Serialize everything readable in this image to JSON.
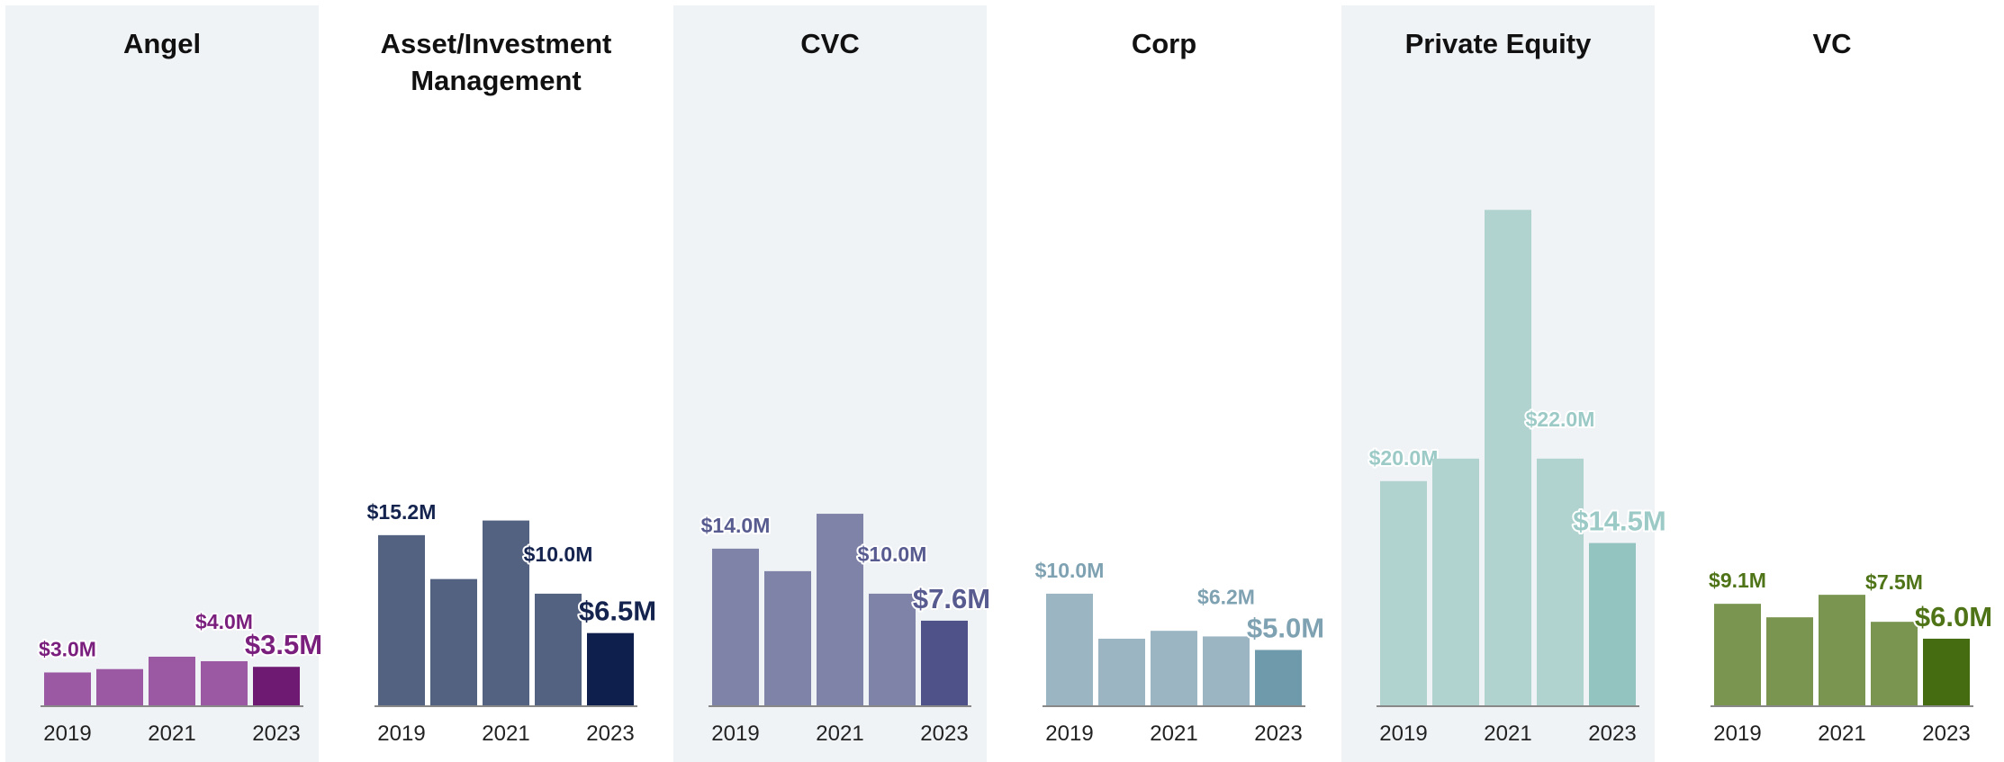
{
  "chart_data": [
    {
      "type": "bar",
      "title": "Angel",
      "categories": [
        "2019",
        null,
        "2021",
        null,
        "2023"
      ],
      "values": [
        3.0,
        3.3,
        4.4,
        4.0,
        3.5
      ],
      "value_labels": [
        "$3.0M",
        null,
        null,
        "$4.0M",
        "$3.5M"
      ],
      "colors": [
        "#9b59a3",
        "#9b59a3",
        "#9b59a3",
        "#9b59a3",
        "#6e1a72"
      ],
      "label_color": "#7a1f7d",
      "background": "#f0f3f6",
      "ylim": [
        0,
        47
      ]
    },
    {
      "type": "bar",
      "title": "Asset/Investment Management",
      "categories": [
        "2019",
        null,
        "2021",
        null,
        "2023"
      ],
      "values": [
        15.2,
        11.3,
        16.5,
        10.0,
        6.5
      ],
      "value_labels": [
        "$15.2M",
        null,
        null,
        "$10.0M",
        "$6.5M"
      ],
      "colors": [
        "#536280",
        "#536280",
        "#536280",
        "#536280",
        "#0e1f4d"
      ],
      "label_color": "#14244f",
      "ylim": [
        0,
        47
      ]
    },
    {
      "type": "bar",
      "title": "CVC",
      "categories": [
        "2019",
        null,
        "2021",
        null,
        "2023"
      ],
      "values": [
        14.0,
        12.0,
        17.1,
        10.0,
        7.6
      ],
      "value_labels": [
        "$14.0M",
        null,
        null,
        "$10.0M",
        "$7.6M"
      ],
      "colors": [
        "#8083a8",
        "#8083a8",
        "#8083a8",
        "#8083a8",
        "#4e5289"
      ],
      "label_color": "#575b8f",
      "background": "#f0f3f6",
      "ylim": [
        0,
        47
      ]
    },
    {
      "type": "bar",
      "title": "Corp",
      "categories": [
        "2019",
        null,
        "2021",
        null,
        "2023"
      ],
      "values": [
        10.0,
        6.0,
        6.7,
        6.2,
        5.0
      ],
      "value_labels": [
        "$10.0M",
        null,
        null,
        "$6.2M",
        "$5.0M"
      ],
      "colors": [
        "#9bb5c2",
        "#9bb5c2",
        "#9bb5c2",
        "#9bb5c2",
        "#6f9aab"
      ],
      "label_color": "#7fa2b2",
      "ylim": [
        0,
        47
      ]
    },
    {
      "type": "bar",
      "title": "Private Equity",
      "categories": [
        "2019",
        null,
        "2021",
        null,
        "2023"
      ],
      "values": [
        20.0,
        22.0,
        44.1,
        22.0,
        14.5
      ],
      "value_labels": [
        "$20.0M",
        null,
        null,
        "$22.0M",
        "$14.5M"
      ],
      "colors": [
        "#b0d3cf",
        "#b0d3cf",
        "#b0d3cf",
        "#b0d3cf",
        "#93c4c0"
      ],
      "label_color": "#9ccac6",
      "background": "#f0f3f6",
      "ylim": [
        0,
        47
      ]
    },
    {
      "type": "bar",
      "title": "VC",
      "categories": [
        "2019",
        null,
        "2021",
        null,
        "2023"
      ],
      "values": [
        9.1,
        7.9,
        9.9,
        7.5,
        6.0
      ],
      "value_labels": [
        "$9.1M",
        null,
        null,
        "$7.5M",
        "$6.0M"
      ],
      "colors": [
        "#7a9550",
        "#7a9550",
        "#7a9550",
        "#7a9550",
        "#456c10"
      ],
      "label_color": "#4f7418",
      "ylim": [
        0,
        47
      ]
    }
  ]
}
